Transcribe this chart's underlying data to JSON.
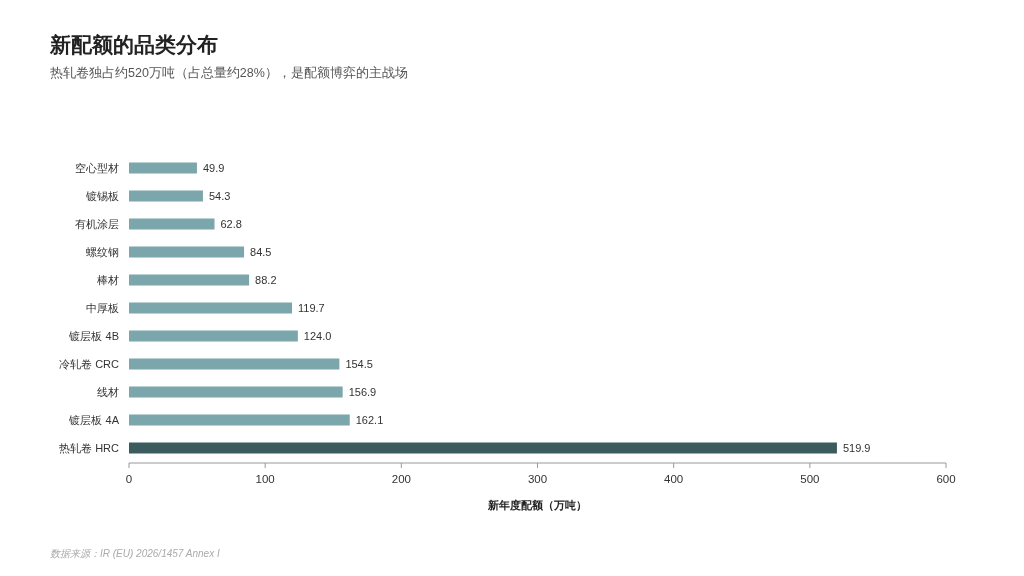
{
  "chart_data": {
    "type": "bar",
    "orientation": "horizontal",
    "title": "新配额的品类分布",
    "subtitle": "热轧卷独占约520万吨（占总量约28%），是配额博弈的主战场",
    "categories": [
      "空心型材",
      "镀锡板",
      "有机涂层",
      "螺纹钢",
      "棒材",
      "中厚板",
      "镀层板 4B",
      "冷轧卷 CRC",
      "线材",
      "镀层板 4A",
      "热轧卷 HRC"
    ],
    "values": [
      49.9,
      54.3,
      62.8,
      84.5,
      88.2,
      119.7,
      124.0,
      154.5,
      156.9,
      162.1,
      519.9
    ],
    "value_labels": [
      "49.9",
      "54.3",
      "62.8",
      "84.5",
      "88.2",
      "119.7",
      "124.0",
      "154.5",
      "156.9",
      "162.1",
      "519.9"
    ],
    "colors": [
      "#7ba6ab",
      "#7ba6ab",
      "#7ba6ab",
      "#7ba6ab",
      "#7ba6ab",
      "#7ba6ab",
      "#7ba6ab",
      "#7ba6ab",
      "#7ba6ab",
      "#7ba6ab",
      "#3b5c5f"
    ],
    "xlim": [
      0,
      600
    ],
    "xticks": [
      0,
      100,
      200,
      300,
      400,
      500,
      600
    ],
    "xlabel": "新年度配额（万吨）",
    "grid": false,
    "annotations": [
      "数据来源：IR (EU) 2026/1457 Annex I"
    ]
  }
}
